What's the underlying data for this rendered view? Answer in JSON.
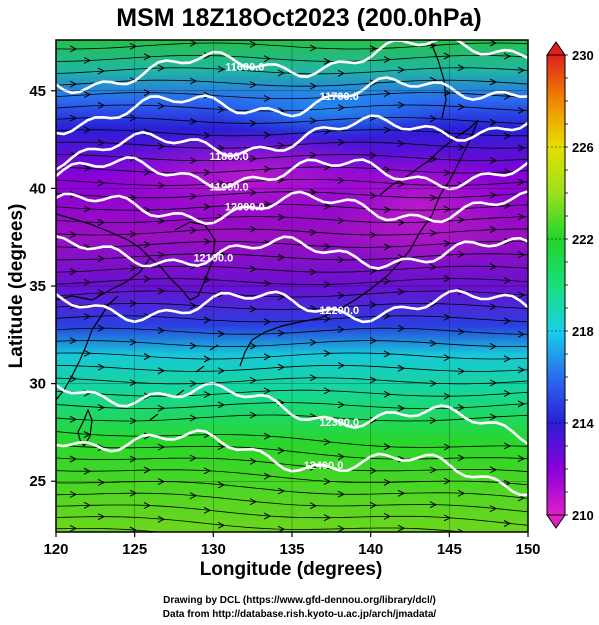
{
  "title": "MSM 18Z18Oct2023 (200.0hPa)",
  "credits": {
    "line1": "Drawing by DCL (https://www.gfd-dennou.org/library/dcl/)",
    "line2": "Data from http://database.rish.kyoto-u.ac.jp/arch/jmadata/"
  },
  "chart_data": {
    "type": "heatmap",
    "title": "MSM 18Z18Oct2023 (200.0hPa)",
    "xlabel": "Longitude (degrees)",
    "ylabel": "Latitude  (degrees)",
    "xlim": [
      120,
      150
    ],
    "ylim": [
      22.4,
      47.6
    ],
    "xticks": [
      120,
      125,
      130,
      135,
      140,
      145,
      150
    ],
    "yticks": [
      25,
      30,
      35,
      40,
      45
    ],
    "fill_variable_colorbar": {
      "range": [
        210,
        230
      ],
      "labeled_ticks": [
        210,
        214,
        218,
        222,
        226,
        230
      ],
      "colormap": "magenta-blue-cyan-green-yellow-orange-red"
    },
    "geopotential_height_contours": [
      {
        "label": "11600.0",
        "value": 11600,
        "approx_lat": 46.5
      },
      {
        "label": "11700.0",
        "value": 11700,
        "approx_lat": 44.5
      },
      {
        "label": "11800.0",
        "value": 11800,
        "approx_lat": 42.6
      },
      {
        "label": "11900.0",
        "value": 11900,
        "approx_lat": 40.8
      },
      {
        "label": "12000.0",
        "value": 12000,
        "approx_lat": 39.0
      },
      {
        "label": "12100.0",
        "value": 12100,
        "approx_lat": 36.7
      },
      {
        "label": "12200.0",
        "value": 12200,
        "approx_lat": 34.0
      },
      {
        "label": "12300.0",
        "value": 12300,
        "approx_lat": 30.0
      },
      {
        "label": "12400.0",
        "value": 12400,
        "approx_lat": 27.5
      }
    ],
    "wind_vectors": "streamlines from west to east",
    "grid": true
  }
}
